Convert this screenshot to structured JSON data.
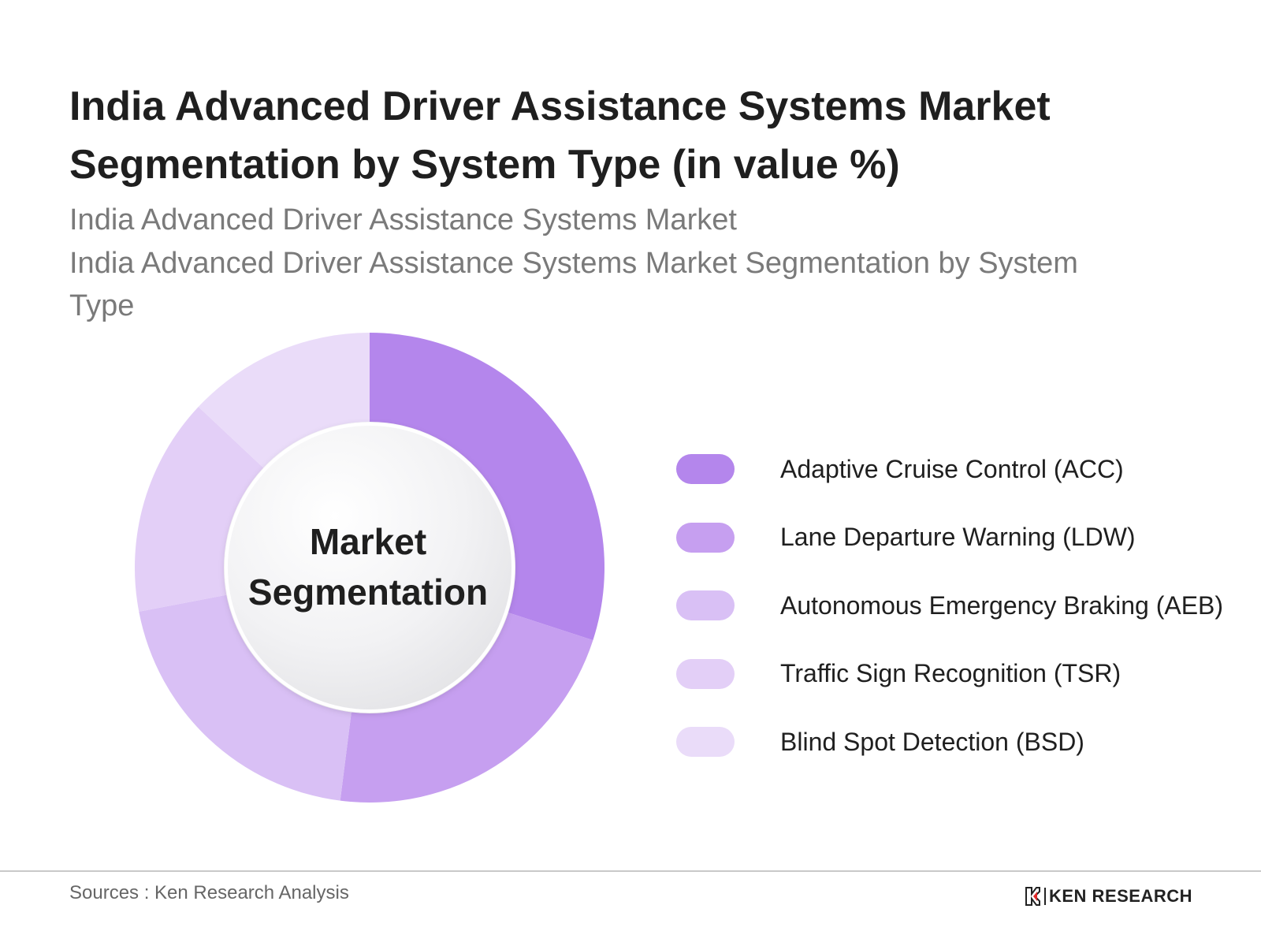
{
  "header": {
    "title": "India Advanced Driver Assistance Systems Market Segmentation by System Type (in value %)",
    "subtitle_line_1": "India Advanced Driver Assistance Systems Market",
    "subtitle_line_2": "India Advanced Driver Assistance Systems Market Segmentation by System Type"
  },
  "chart_data": {
    "type": "pie",
    "style": "donut",
    "title": "India Advanced Driver Assistance Systems Market Segmentation by System Type (in value %)",
    "center_label_line_1": "Market",
    "center_label_line_2": "Segmentation",
    "legend_position": "right",
    "categories": [
      "Adaptive Cruise Control (ACC)",
      "Lane Departure Warning (LDW)",
      "Autonomous Emergency Braking (AEB)",
      "Traffic Sign Recognition (TSR)",
      "Blind Spot Detection (BSD)"
    ],
    "values": [
      30,
      22,
      20,
      15,
      13
    ],
    "colors": [
      "#b486ec",
      "#c69ff0",
      "#d9c0f5",
      "#e3cff7",
      "#eadcf9"
    ]
  },
  "footer": {
    "source": "Sources : Ken Research Analysis",
    "brand_name": "KEN RESEARCH",
    "brand_logo_letter": "K",
    "brand_colors": [
      "#222222",
      "#e02727"
    ]
  }
}
